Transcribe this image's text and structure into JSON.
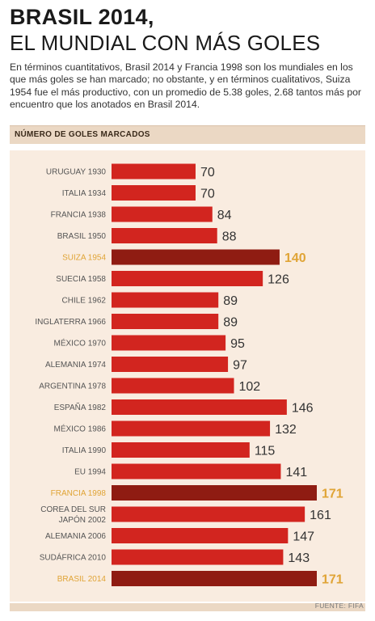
{
  "header": {
    "title_line1": "BRASIL 2014,",
    "title_line2": "EL MUNDIAL CON MÁS GOLES",
    "intro": "En términos cuantitativos, Brasil 2014 y Francia 1998 son los mundiales en los que más goles se han marcado; no obstante, y en términos cualitativos, Suiza 1954 fue el más productivo, con un promedio de 5.38 goles, 2.68 tantos más por encuentro que los anotados en Brasil 2014."
  },
  "chart_header": "NÚMERO DE GOLES MARCADOS",
  "source": "FUENTE: FIFA",
  "colors": {
    "bar": "#d2251f",
    "highlight_bar": "#8f1c12",
    "highlight_label": "#e0a436",
    "label": "#555555",
    "value": "#333333"
  },
  "chart_data": {
    "type": "bar",
    "orientation": "horizontal",
    "categories": [
      "URUGUAY 1930",
      "ITALIA 1934",
      "FRANCIA 1938",
      "BRASIL 1950",
      "SUIZA 1954",
      "SUECIA 1958",
      "CHILE 1962",
      "INGLATERRA 1966",
      "MÉXICO 1970",
      "ALEMANIA 1974",
      "ARGENTINA 1978",
      "ESPAÑA 1982",
      "MÉXICO 1986",
      "ITALIA 1990",
      "EU 1994",
      "FRANCIA 1998",
      "COREA DEL SUR\nJAPÓN 2002",
      "ALEMANIA 2006",
      "SUDÁFRICA 2010",
      "BRASIL 2014"
    ],
    "values": [
      70,
      70,
      84,
      88,
      140,
      126,
      89,
      89,
      95,
      97,
      102,
      146,
      132,
      115,
      141,
      171,
      161,
      147,
      143,
      171
    ],
    "highlighted": [
      "SUIZA 1954",
      "FRANCIA 1998",
      "BRASIL 2014"
    ],
    "title": "NÚMERO DE GOLES MARCADOS",
    "xlim": [
      0,
      171
    ]
  }
}
